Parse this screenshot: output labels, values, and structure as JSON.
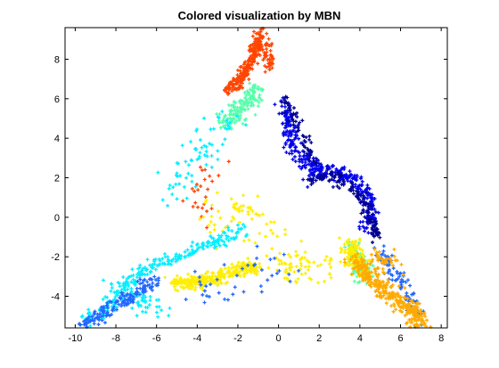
{
  "chart_data": {
    "type": "scatter",
    "title": "Colored visualization by MBN",
    "xlabel": "",
    "ylabel": "",
    "xlim": [
      -10.5,
      8.3
    ],
    "ylim": [
      -5.6,
      9.6
    ],
    "xticks": [
      -10,
      -8,
      -6,
      -4,
      -2,
      0,
      2,
      4,
      6,
      8
    ],
    "yticks": [
      -4,
      -2,
      0,
      2,
      4,
      6,
      8
    ],
    "grid": false,
    "legend": "none",
    "marker": "plus",
    "series": [
      {
        "color": "#ff4400",
        "clusters": [
          {
            "n": 220,
            "path": [
              [
                -0.9,
                9.4
              ],
              [
                -1.2,
                8.3
              ],
              [
                -1.5,
                7.5
              ],
              [
                -2.0,
                6.8
              ],
              [
                -2.5,
                6.4
              ]
            ],
            "spread": 0.15
          },
          {
            "n": 50,
            "path": [
              [
                -0.7,
                9.0
              ],
              [
                -0.4,
                7.5
              ]
            ],
            "spread": 0.12
          },
          {
            "n": 25,
            "path": [
              [
                -3.0,
                3.0
              ],
              [
                -4.0,
                1.5
              ],
              [
                -3.5,
                0.2
              ]
            ],
            "spread": 0.45
          }
        ]
      },
      {
        "color": "#55ffaa",
        "clusters": [
          {
            "n": 140,
            "path": [
              [
                -1.0,
                6.5
              ],
              [
                -1.5,
                5.8
              ],
              [
                -2.2,
                5.1
              ],
              [
                -2.8,
                4.8
              ]
            ],
            "spread": 0.25
          },
          {
            "n": 100,
            "path": [
              [
                3.6,
                -1.4
              ],
              [
                3.9,
                -2.2
              ],
              [
                4.2,
                -3.0
              ]
            ],
            "spread": 0.22
          }
        ]
      },
      {
        "color": "#0000ee",
        "clusters": [
          {
            "n": 170,
            "path": [
              [
                0.2,
                5.8
              ],
              [
                0.5,
                4.8
              ],
              [
                0.6,
                3.8
              ],
              [
                1.2,
                3.0
              ],
              [
                2.0,
                2.4
              ]
            ],
            "spread": 0.2
          },
          {
            "n": 200,
            "path": [
              [
                1.5,
                2.2
              ],
              [
                2.5,
                2.3
              ],
              [
                3.5,
                2.0
              ],
              [
                4.3,
                1.3
              ],
              [
                4.6,
                0.2
              ],
              [
                4.3,
                -0.6
              ]
            ],
            "spread": 0.18
          }
        ]
      },
      {
        "color": "#000090",
        "clusters": [
          {
            "n": 140,
            "path": [
              [
                1.5,
                1.9
              ],
              [
                2.5,
                2.1
              ],
              [
                3.5,
                1.6
              ],
              [
                4.2,
                0.8
              ],
              [
                4.6,
                -0.2
              ],
              [
                4.8,
                -1.0
              ]
            ],
            "spread": 0.15
          },
          {
            "n": 60,
            "path": [
              [
                0.3,
                6.0
              ],
              [
                0.8,
                5.0
              ],
              [
                1.8,
                2.6
              ]
            ],
            "spread": 0.15
          }
        ]
      },
      {
        "color": "#ffee00",
        "clusters": [
          {
            "n": 320,
            "path": [
              [
                -5.2,
                -3.3
              ],
              [
                -4.0,
                -3.3
              ],
              [
                -3.0,
                -3.1
              ],
              [
                -1.9,
                -2.6
              ],
              [
                -1.0,
                -2.5
              ]
            ],
            "spread": 0.16
          },
          {
            "n": 80,
            "path": [
              [
                -0.5,
                -2.0
              ],
              [
                1.0,
                -2.5
              ],
              [
                2.5,
                -2.4
              ],
              [
                4.0,
                -2.0
              ]
            ],
            "spread": 0.5
          },
          {
            "n": 60,
            "path": [
              [
                -3.5,
                -0.2
              ],
              [
                -1.5,
                0.4
              ],
              [
                -0.5,
                -0.2
              ]
            ],
            "spread": 0.6
          },
          {
            "n": 120,
            "path": [
              [
                3.5,
                -1.3
              ],
              [
                3.8,
                -2.2
              ],
              [
                4.3,
                -2.8
              ]
            ],
            "spread": 0.22
          }
        ]
      },
      {
        "color": "#00eeff",
        "clusters": [
          {
            "n": 240,
            "path": [
              [
                -9.5,
                -5.3
              ],
              [
                -8.5,
                -4.7
              ],
              [
                -7.5,
                -3.5
              ],
              [
                -6.6,
                -2.6
              ],
              [
                -5.0,
                -2.0
              ],
              [
                -3.2,
                -1.3
              ],
              [
                -1.8,
                -0.6
              ]
            ],
            "spread": 0.18
          },
          {
            "n": 70,
            "path": [
              [
                -2.0,
                5.0
              ],
              [
                -3.0,
                4.5
              ],
              [
                -4.0,
                3.0
              ],
              [
                -5.5,
                1.2
              ]
            ],
            "spread": 0.4
          },
          {
            "n": 60,
            "path": [
              [
                -8.0,
                -3.5
              ],
              [
                -6.5,
                -4.5
              ],
              [
                -5.5,
                -4.8
              ]
            ],
            "spread": 0.3
          }
        ]
      },
      {
        "color": "#2266ff",
        "clusters": [
          {
            "n": 160,
            "path": [
              [
                -9.6,
                -5.4
              ],
              [
                -8.8,
                -5.0
              ],
              [
                -8.0,
                -4.4
              ],
              [
                -7.0,
                -3.8
              ],
              [
                -6.0,
                -3.2
              ]
            ],
            "spread": 0.18
          },
          {
            "n": 90,
            "path": [
              [
                5.0,
                -1.5
              ],
              [
                5.8,
                -3.0
              ],
              [
                6.5,
                -4.2
              ],
              [
                7.0,
                -5.3
              ]
            ],
            "spread": 0.2
          },
          {
            "n": 40,
            "path": [
              [
                -4.0,
                -4.0
              ],
              [
                -2.5,
                -3.2
              ],
              [
                0.5,
                -2.4
              ]
            ],
            "spread": 0.5
          }
        ]
      },
      {
        "color": "#ffaa00",
        "clusters": [
          {
            "n": 330,
            "path": [
              [
                3.8,
                -2.2
              ],
              [
                4.6,
                -3.2
              ],
              [
                5.6,
                -4.0
              ],
              [
                6.6,
                -4.7
              ],
              [
                7.0,
                -5.4
              ]
            ],
            "spread": 0.22
          },
          {
            "n": 40,
            "path": [
              [
                4.5,
                -1.8
              ],
              [
                5.5,
                -2.5
              ]
            ],
            "spread": 0.3
          }
        ]
      }
    ]
  }
}
